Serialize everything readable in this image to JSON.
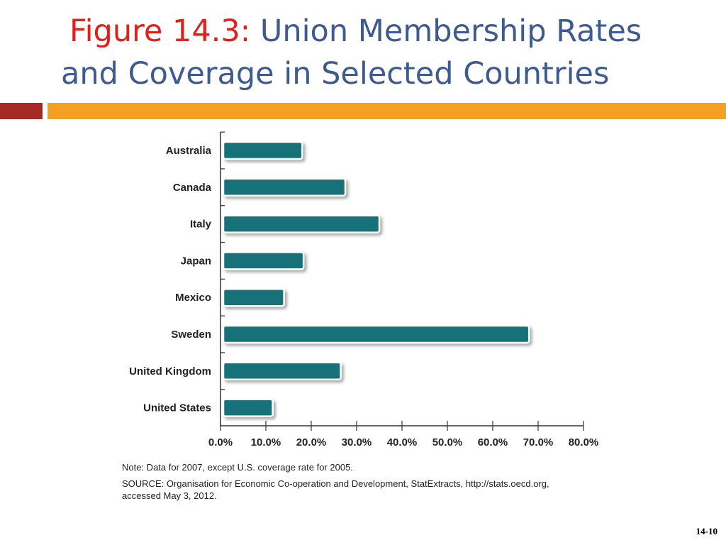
{
  "slide": {
    "figure_label": "Figure 14.3:",
    "title_line1": "Union Membership Rates",
    "title_line2": "and Coverage in Selected Countries",
    "note": "Note: Data for 2007, except U.S. coverage rate for 2005.",
    "source": "SOURCE: Organisation for Economic Co-operation and Development, StatExtracts, http://stats.oecd.org,",
    "source2": "accessed May 3, 2012.",
    "page_number": "14-10"
  },
  "colors": {
    "title": "#3d5a91",
    "figure_label": "#e0201a",
    "bar": "#147179",
    "accent_red": "#a62a23",
    "accent_orange": "#f4a020"
  },
  "chart_data": {
    "type": "bar",
    "orientation": "horizontal",
    "categories": [
      "Australia",
      "Canada",
      "Italy",
      "Japan",
      "Mexico",
      "Sweden",
      "United Kingdom",
      "United States"
    ],
    "values": [
      18.0,
      27.5,
      35.0,
      18.3,
      14.0,
      68.0,
      26.5,
      11.5
    ],
    "xlim": [
      0,
      80
    ],
    "xticks": [
      "0.0%",
      "10.0%",
      "20.0%",
      "30.0%",
      "40.0%",
      "50.0%",
      "60.0%",
      "70.0%",
      "80.0%"
    ],
    "grid": false,
    "legend": "none"
  }
}
